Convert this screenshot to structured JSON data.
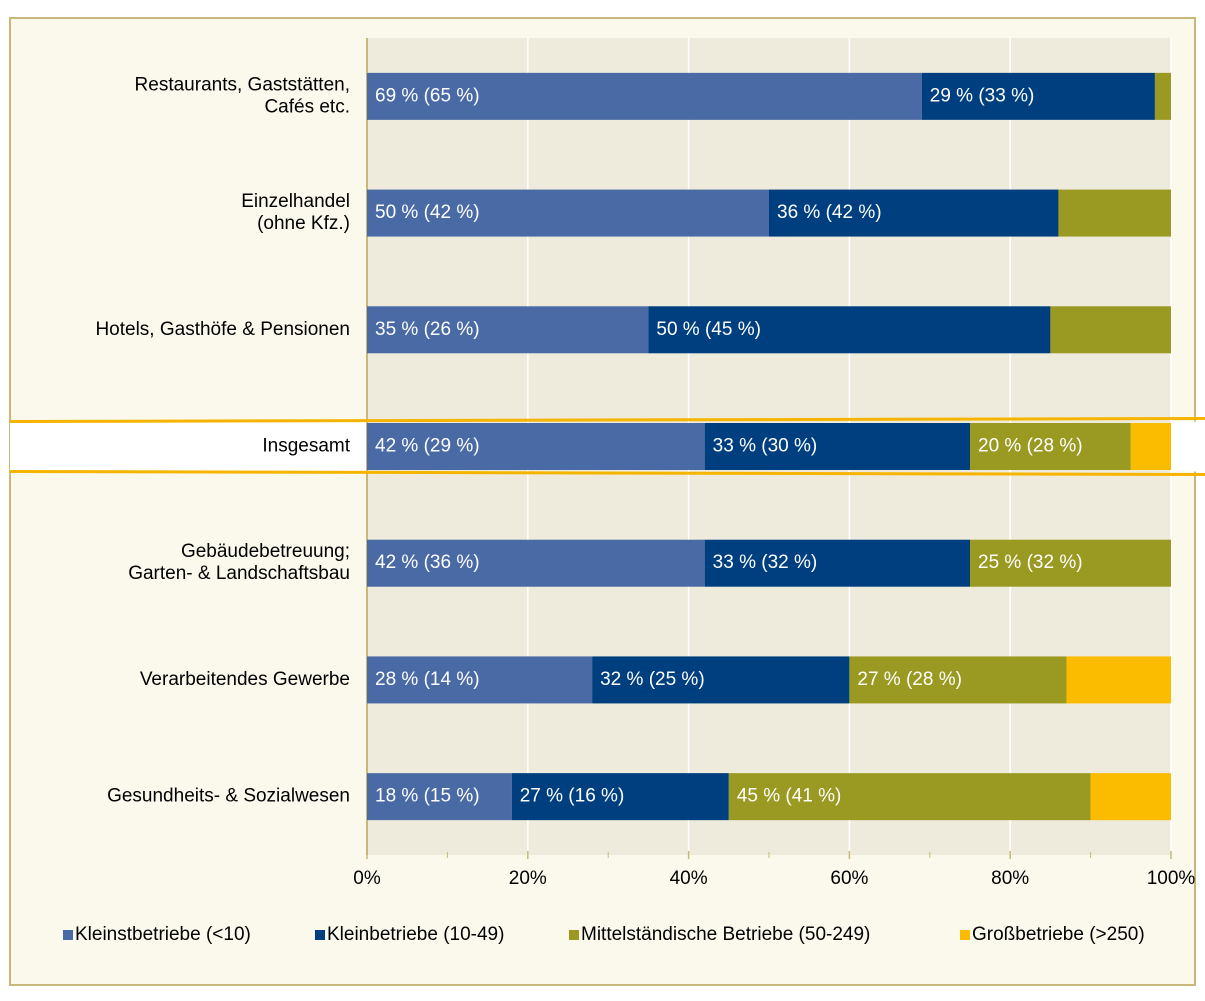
{
  "chart_data": {
    "type": "stacked-barh",
    "categories": [
      "Restaurants, Gaststätten,\nCafés etc.",
      "Einzelhandel\n(ohne Kfz.)",
      "Hotels, Gasthöfe & Pensionen",
      "Insgesamt",
      "Gebäudebetreuung;\nGarten- & Landschaftsbau",
      "Verarbeitendes Gewerbe",
      "Gesundheits- & Sozialwesen"
    ],
    "highlight_category": "Insgesamt",
    "series": [
      {
        "name": "Kleinstbetriebe (<10)",
        "color": "#4a6aa5",
        "values": [
          69,
          50,
          35,
          42,
          42,
          28,
          18
        ],
        "value_labels": [
          "69 % (65 %)",
          "50 % (42 %)",
          "35 % (26 %)",
          "42 % (29 %)",
          "42 % (36 %)",
          "28 % (14 %)",
          "18 % (15 %)"
        ]
      },
      {
        "name": "Kleinbetriebe (10-49)",
        "color": "#003f7f",
        "values": [
          29,
          36,
          50,
          33,
          33,
          32,
          27
        ],
        "value_labels": [
          "29 % (33 %)",
          "36 % (42 %)",
          "50 % (45 %)",
          "33 % (30 %)",
          "33 % (32 %)",
          "32 % (25 %)",
          "27 % (16 %)"
        ]
      },
      {
        "name": "Mittelständische Betriebe (50-249)",
        "color": "#9a9a22",
        "values": [
          2,
          14,
          15,
          20,
          25,
          27,
          45
        ],
        "value_labels": [
          null,
          null,
          null,
          "20 % (28 %)",
          "25 % (32 %)",
          "27 % (28 %)",
          "45 % (41 %)"
        ]
      },
      {
        "name": "Großbetriebe (>250)",
        "color": "#fbbc00",
        "values": [
          0,
          0,
          0,
          5,
          0,
          13,
          10
        ],
        "value_labels": [
          null,
          null,
          null,
          null,
          null,
          null,
          null
        ]
      }
    ],
    "xlim": [
      0,
      100
    ],
    "xticks": [
      {
        "value": 0,
        "label": "0%"
      },
      {
        "value": 20,
        "label": "20%"
      },
      {
        "value": 40,
        "label": "40%"
      },
      {
        "value": 60,
        "label": "60%"
      },
      {
        "value": 80,
        "label": "80%"
      },
      {
        "value": 100,
        "label": "100%"
      }
    ],
    "grid": true,
    "legend": "bottom"
  }
}
